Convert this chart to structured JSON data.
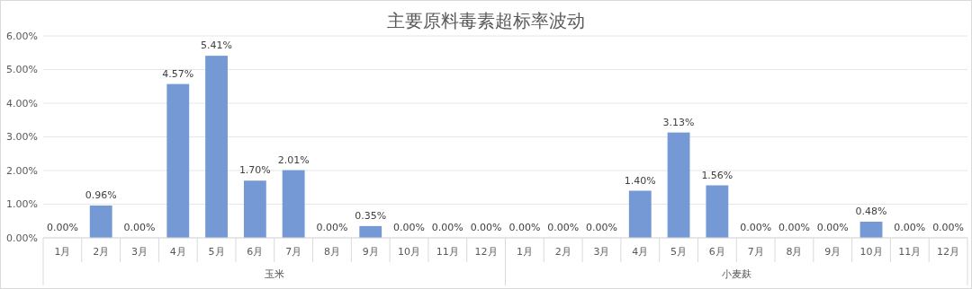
{
  "chart_data": {
    "type": "bar",
    "title": "主要原料毒素超标率波动",
    "categories": [
      "1月",
      "2月",
      "3月",
      "4月",
      "5月",
      "6月",
      "7月",
      "8月",
      "9月",
      "10月",
      "11月",
      "12月",
      "1月",
      "2月",
      "3月",
      "4月",
      "5月",
      "6月",
      "7月",
      "8月",
      "9月",
      "10月",
      "11月",
      "12月"
    ],
    "values": [
      0,
      0.96,
      0,
      4.57,
      5.41,
      1.7,
      2.01,
      0,
      0.35,
      0,
      0,
      0,
      0,
      0,
      0,
      1.4,
      3.13,
      1.56,
      0,
      0,
      0,
      0.48,
      0,
      0
    ],
    "value_labels": [
      "0.00%",
      "0.96%",
      "0.00%",
      "4.57%",
      "5.41%",
      "1.70%",
      "2.01%",
      "0.00%",
      "0.35%",
      "0.00%",
      "0.00%",
      "0.00%",
      "0.00%",
      "0.00%",
      "0.00%",
      "1.40%",
      "3.13%",
      "1.56%",
      "0.00%",
      "0.00%",
      "0.00%",
      "0.48%",
      "0.00%",
      "0.00%"
    ],
    "color": "#7499d5",
    "ylim": [
      0,
      6
    ],
    "yticks": [
      {
        "value": 0,
        "label": "0.00%"
      },
      {
        "value": 1,
        "label": "1.00%"
      },
      {
        "value": 2,
        "label": "2.00%"
      },
      {
        "value": 3,
        "label": "3.00%"
      },
      {
        "value": 4,
        "label": "4.00%"
      },
      {
        "value": 5,
        "label": "5.00%"
      },
      {
        "value": 6,
        "label": "6.00%"
      }
    ],
    "grid": "y",
    "annotations": [
      "玉米",
      "小麦麸"
    ]
  }
}
